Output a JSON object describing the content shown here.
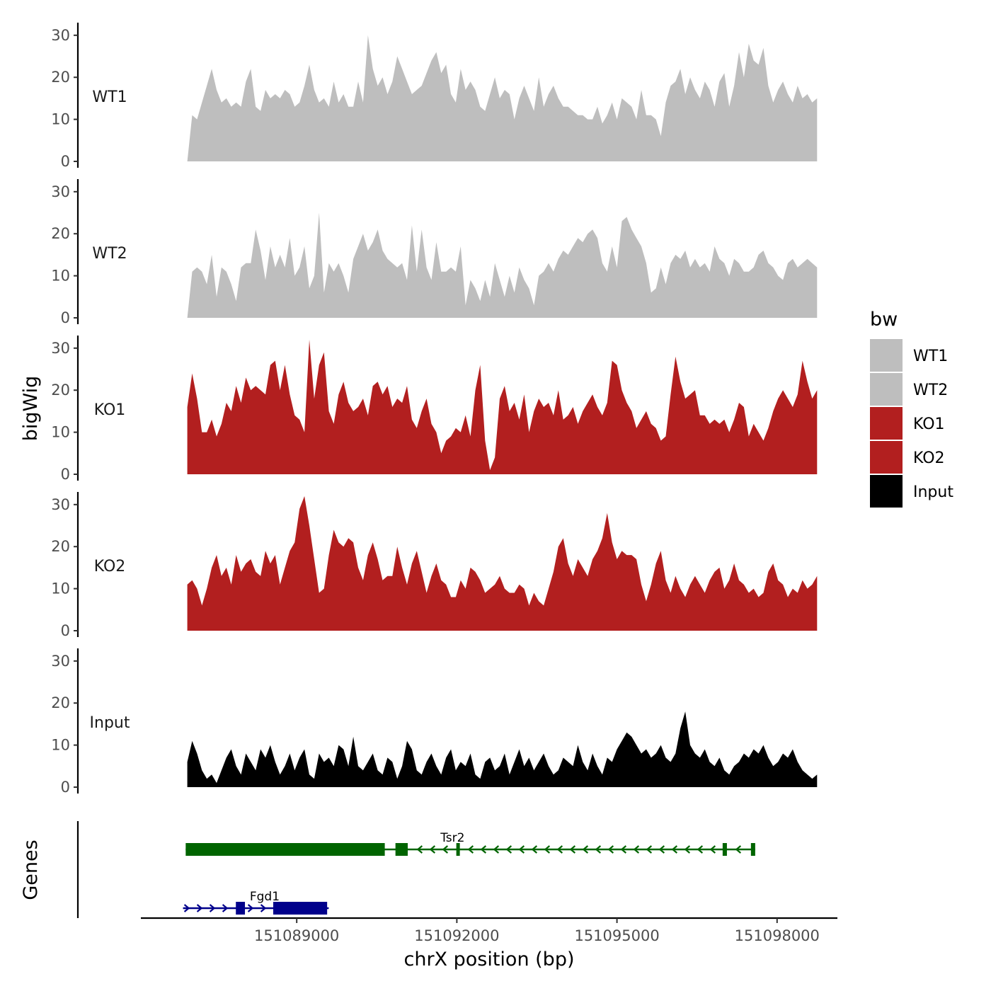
{
  "chart_data": {
    "type": "area",
    "title": "",
    "ylabel": "bigWig",
    "xlabel": "chrX position (bp)",
    "ylim": [
      0,
      33
    ],
    "xlim": [
      151086080,
      151099130
    ],
    "data_start": 151086950,
    "data_end": 151098750,
    "yticks": [
      0,
      10,
      20,
      30
    ],
    "ytick_labels": [
      "0",
      "10",
      "20",
      "30"
    ],
    "xticks": [
      151089000,
      151092000,
      151095000,
      151098000
    ],
    "xtick_labels": [
      "151089000",
      "151092000",
      "151095000",
      "151098000"
    ],
    "tracks": [
      {
        "name": "WT1",
        "label": "WT1",
        "color": "#bebebe",
        "values": [
          0,
          11,
          10,
          14,
          18,
          22,
          17,
          14,
          15,
          13,
          14,
          13,
          19,
          22,
          13,
          12,
          17,
          15,
          16,
          15,
          17,
          16,
          13,
          14,
          18,
          23,
          17,
          14,
          15,
          13,
          19,
          14,
          16,
          13,
          13,
          19,
          14,
          30,
          22,
          18,
          20,
          16,
          19,
          25,
          22,
          19,
          16,
          17,
          18,
          21,
          24,
          26,
          21,
          23,
          16,
          14,
          22,
          17,
          19,
          17,
          13,
          12,
          16,
          20,
          15,
          17,
          16,
          10,
          15,
          18,
          15,
          12,
          20,
          13,
          16,
          18,
          15,
          13,
          13,
          12,
          11,
          11,
          10,
          10,
          13,
          9,
          11,
          14,
          10,
          15,
          14,
          13,
          10,
          17,
          11,
          11,
          10,
          6,
          14,
          18,
          19,
          22,
          16,
          20,
          17,
          15,
          19,
          17,
          13,
          19,
          21,
          13,
          18,
          26,
          20,
          28,
          24,
          23,
          27,
          18,
          14,
          17,
          19,
          16,
          14,
          18,
          15,
          16,
          14,
          15
        ]
      },
      {
        "name": "WT2",
        "label": "WT2",
        "color": "#bebebe",
        "values": [
          0,
          11,
          12,
          11,
          8,
          15,
          5,
          12,
          11,
          8,
          4,
          12,
          13,
          13,
          21,
          16,
          9,
          17,
          12,
          15,
          12,
          19,
          10,
          12,
          17,
          7,
          10,
          25,
          6,
          13,
          11,
          13,
          10,
          6,
          14,
          17,
          20,
          16,
          18,
          21,
          16,
          14,
          13,
          12,
          13,
          9,
          22,
          11,
          21,
          12,
          9,
          18,
          11,
          11,
          12,
          11,
          17,
          3,
          9,
          7,
          4,
          9,
          5,
          13,
          9,
          5,
          10,
          6,
          12,
          9,
          7,
          3,
          10,
          11,
          13,
          11,
          14,
          16,
          15,
          17,
          19,
          18,
          20,
          21,
          19,
          13,
          11,
          17,
          12,
          23,
          24,
          21,
          19,
          17,
          13,
          6,
          7,
          12,
          8,
          13,
          15,
          14,
          16,
          12,
          14,
          12,
          13,
          11,
          17,
          14,
          13,
          10,
          14,
          13,
          11,
          11,
          12,
          15,
          16,
          13,
          12,
          10,
          9,
          13,
          14,
          12,
          13,
          14,
          13,
          12
        ]
      },
      {
        "name": "KO1",
        "label": "KO1",
        "color": "#b21f1f",
        "values": [
          16,
          24,
          18,
          10,
          10,
          13,
          9,
          12,
          17,
          15,
          21,
          17,
          23,
          20,
          21,
          20,
          19,
          26,
          27,
          20,
          26,
          19,
          14,
          13,
          10,
          32,
          18,
          26,
          29,
          15,
          12,
          19,
          22,
          17,
          15,
          16,
          18,
          14,
          21,
          22,
          19,
          21,
          16,
          18,
          17,
          21,
          13,
          11,
          15,
          18,
          12,
          10,
          5,
          8,
          9,
          11,
          10,
          14,
          9,
          20,
          26,
          8,
          1,
          4,
          18,
          21,
          15,
          17,
          13,
          19,
          10,
          15,
          18,
          16,
          17,
          14,
          20,
          13,
          14,
          16,
          12,
          15,
          17,
          19,
          16,
          14,
          17,
          27,
          26,
          20,
          17,
          15,
          11,
          13,
          15,
          12,
          11,
          8,
          9,
          19,
          28,
          22,
          18,
          19,
          20,
          14,
          14,
          12,
          13,
          12,
          13,
          10,
          13,
          17,
          16,
          9,
          12,
          10,
          8,
          11,
          15,
          18,
          20,
          18,
          16,
          19,
          27,
          22,
          18,
          20
        ]
      },
      {
        "name": "KO2",
        "label": "KO2",
        "color": "#b21f1f",
        "values": [
          11,
          12,
          10,
          6,
          10,
          15,
          18,
          13,
          15,
          11,
          18,
          14,
          16,
          17,
          14,
          13,
          19,
          16,
          18,
          11,
          15,
          19,
          21,
          29,
          32,
          25,
          17,
          9,
          10,
          18,
          24,
          21,
          20,
          22,
          21,
          15,
          12,
          18,
          21,
          17,
          12,
          13,
          13,
          20,
          15,
          11,
          16,
          19,
          14,
          9,
          13,
          16,
          12,
          11,
          8,
          8,
          12,
          10,
          15,
          14,
          12,
          9,
          10,
          11,
          13,
          10,
          9,
          9,
          11,
          10,
          6,
          9,
          7,
          6,
          10,
          14,
          20,
          22,
          16,
          13,
          17,
          15,
          13,
          17,
          19,
          22,
          28,
          21,
          17,
          19,
          18,
          18,
          17,
          11,
          7,
          11,
          16,
          19,
          12,
          9,
          13,
          10,
          8,
          11,
          13,
          11,
          9,
          12,
          14,
          15,
          10,
          12,
          16,
          12,
          11,
          9,
          10,
          8,
          9,
          14,
          16,
          12,
          11,
          8,
          10,
          9,
          12,
          10,
          11,
          13
        ]
      },
      {
        "name": "Input",
        "label": "Input",
        "color": "#000000",
        "values": [
          6,
          11,
          8,
          4,
          2,
          3,
          1,
          4,
          7,
          9,
          5,
          3,
          8,
          6,
          4,
          9,
          7,
          10,
          6,
          3,
          5,
          8,
          4,
          7,
          9,
          3,
          2,
          8,
          6,
          7,
          5,
          10,
          9,
          5,
          12,
          5,
          4,
          6,
          8,
          4,
          3,
          7,
          6,
          2,
          5,
          11,
          9,
          4,
          3,
          6,
          8,
          5,
          3,
          7,
          9,
          4,
          6,
          5,
          8,
          3,
          2,
          6,
          7,
          4,
          5,
          8,
          3,
          6,
          9,
          5,
          7,
          4,
          6,
          8,
          5,
          3,
          4,
          7,
          6,
          5,
          10,
          6,
          4,
          8,
          5,
          3,
          7,
          6,
          9,
          11,
          13,
          12,
          10,
          8,
          9,
          7,
          8,
          10,
          7,
          6,
          8,
          14,
          18,
          10,
          8,
          7,
          9,
          6,
          5,
          7,
          4,
          3,
          5,
          6,
          8,
          7,
          9,
          8,
          10,
          7,
          5,
          6,
          8,
          7,
          9,
          6,
          4,
          3,
          2,
          3
        ]
      }
    ],
    "legend": {
      "title": "bw",
      "position": "right",
      "entries": [
        {
          "label": "WT1",
          "color": "#bebebe"
        },
        {
          "label": "WT2",
          "color": "#bebebe"
        },
        {
          "label": "KO1",
          "color": "#b21f1f"
        },
        {
          "label": "KO2",
          "color": "#b21f1f"
        },
        {
          "label": "Input",
          "color": "#000000"
        }
      ]
    },
    "genes_track": {
      "label": "Genes",
      "genes": [
        {
          "name": "Tsr2",
          "strand": "-",
          "color": "#006400",
          "start": 151086920,
          "end": 151097590,
          "exons": [
            [
              151086920,
              151090650
            ],
            [
              151090850,
              151091080
            ],
            [
              151091990,
              151092050
            ],
            [
              151096980,
              151097060
            ],
            [
              151097510,
              151097590
            ]
          ]
        },
        {
          "name": "Fgd1",
          "strand": "+",
          "color": "#00008b",
          "start": 151086870,
          "end": 151089600,
          "exons": [
            [
              151087860,
              151088030
            ],
            [
              151088560,
              151089570
            ]
          ]
        }
      ]
    }
  }
}
